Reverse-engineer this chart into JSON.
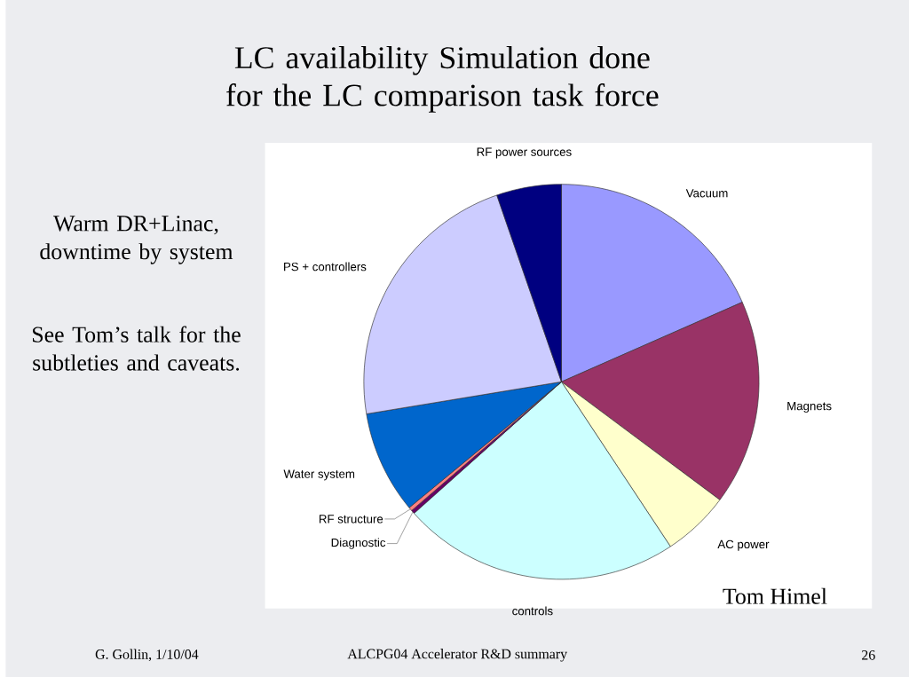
{
  "chart_data": {
    "type": "pie",
    "title": "LC availability Simulation done for the LC comparison task force",
    "categories": [
      "Vacuum",
      "Magnets",
      "AC power",
      "controls",
      "Diagnostic",
      "RF structure",
      "Water system",
      "PS + controllers",
      "RF power sources"
    ],
    "values": [
      18.4,
      16.8,
      5.5,
      22.7,
      0.3,
      0.3,
      8.4,
      22.3,
      5.3
    ],
    "colors": [
      "#9999ff",
      "#993366",
      "#ffffcc",
      "#ccffff",
      "#660066",
      "#ff8080",
      "#0066cc",
      "#ccccff",
      "#000080"
    ],
    "annotations": [
      "Warm DR+Linac, downtime by system",
      "See Tom’s talk for the subtleties and caveats.",
      "Tom Himel",
      "G. Gollin, 1/10/04",
      "ALCPG04 Accelerator R&D summary",
      "26"
    ]
  }
}
